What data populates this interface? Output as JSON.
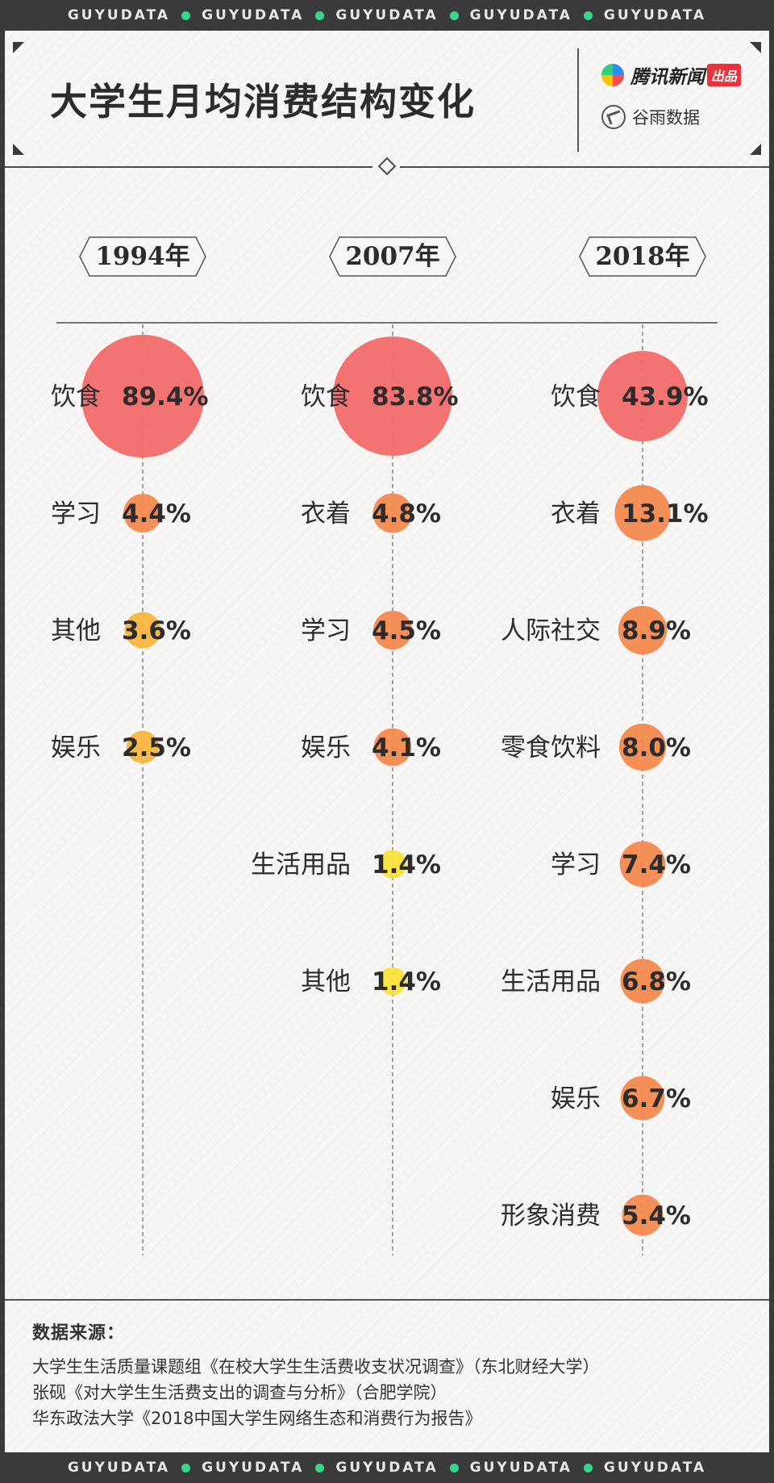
{
  "ticker": {
    "word": "GUYUDATA",
    "repeats": 5,
    "dot_color": "#37d68c"
  },
  "title": "大学生月均消费结构变化",
  "brands": {
    "tencent": {
      "name": "腾讯新闻",
      "tag": "出品"
    },
    "guyu": {
      "name": "谷雨数据"
    }
  },
  "colors": {
    "high": "#f26c6c",
    "mid": "#f3894f",
    "low": "#f8b53e",
    "lowest": "#fbe23a",
    "text": "#2c2c2c"
  },
  "chart_data": {
    "type": "bubble",
    "unit": "%",
    "columns": [
      {
        "year": "1994年",
        "items": [
          {
            "label": "饮食",
            "value": 89.4,
            "display": "89.4%"
          },
          {
            "label": "学习",
            "value": 4.4,
            "display": "4.4%"
          },
          {
            "label": "其他",
            "value": 3.6,
            "display": "3.6%"
          },
          {
            "label": "娱乐",
            "value": 2.5,
            "display": "2.5%"
          }
        ]
      },
      {
        "year": "2007年",
        "items": [
          {
            "label": "饮食",
            "value": 83.8,
            "display": "83.8%"
          },
          {
            "label": "衣着",
            "value": 4.8,
            "display": "4.8%"
          },
          {
            "label": "学习",
            "value": 4.5,
            "display": "4.5%"
          },
          {
            "label": "娱乐",
            "value": 4.1,
            "display": "4.1%"
          },
          {
            "label": "生活用品",
            "value": 1.4,
            "display": "1.4%"
          },
          {
            "label": "其他",
            "value": 1.4,
            "display": "1.4%"
          }
        ]
      },
      {
        "year": "2018年",
        "items": [
          {
            "label": "饮食",
            "value": 43.9,
            "display": "43.9%"
          },
          {
            "label": "衣着",
            "value": 13.1,
            "display": "13.1%"
          },
          {
            "label": "人际社交",
            "value": 8.9,
            "display": "8.9%"
          },
          {
            "label": "零食饮料",
            "value": 8.0,
            "display": "8.0%"
          },
          {
            "label": "学习",
            "value": 7.4,
            "display": "7.4%"
          },
          {
            "label": "生活用品",
            "value": 6.8,
            "display": "6.8%"
          },
          {
            "label": "娱乐",
            "value": 6.7,
            "display": "6.7%"
          },
          {
            "label": "形象消费",
            "value": 5.4,
            "display": "5.4%"
          }
        ]
      }
    ]
  },
  "sources": {
    "heading": "数据来源：",
    "lines": [
      "大学生生活质量课题组《在校大学生生活费收支状况调查》（东北财经大学）",
      "张砚《对大学生生活费支出的调查与分析》（合肥学院）",
      "华东政法大学《2018中国大学生网络生态和消费行为报告》"
    ]
  }
}
